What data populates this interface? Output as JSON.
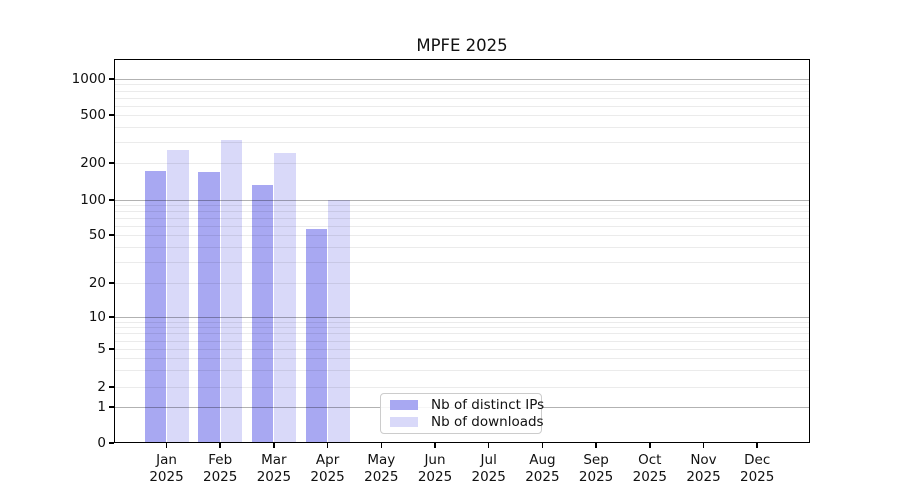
{
  "chart_data": {
    "type": "bar",
    "title": "MPFE 2025",
    "categories": [
      "Jan 2025",
      "Feb 2025",
      "Mar 2025",
      "Apr 2025",
      "May 2025",
      "Jun 2025",
      "Jul 2025",
      "Aug 2025",
      "Sep 2025",
      "Oct 2025",
      "Nov 2025",
      "Dec 2025"
    ],
    "x_tick_months": [
      "Jan",
      "Feb",
      "Mar",
      "Apr",
      "May",
      "Jun",
      "Jul",
      "Aug",
      "Sep",
      "Oct",
      "Nov",
      "Dec"
    ],
    "x_tick_year": "2025",
    "series": [
      {
        "name": "Nb of distinct IPs",
        "color": "#a8a8f2",
        "values": [
          172,
          170,
          132,
          56,
          null,
          null,
          null,
          null,
          null,
          null,
          null,
          null
        ]
      },
      {
        "name": "Nb of downloads",
        "color": "#d9d9f9",
        "values": [
          256,
          308,
          240,
          100,
          null,
          null,
          null,
          null,
          null,
          null,
          null,
          null
        ]
      }
    ],
    "yaxis": {
      "scale": "symlog",
      "tick_values": [
        0,
        1,
        2,
        5,
        10,
        20,
        50,
        100,
        200,
        500,
        1000
      ],
      "tick_labels": [
        "0",
        "1",
        "2",
        "5",
        "10",
        "20",
        "50",
        "100",
        "200",
        "500",
        "1000"
      ]
    },
    "grid": {
      "orientation": "horizontal",
      "major_values": [
        1,
        10,
        100,
        1000
      ],
      "minor_values": [
        2,
        3,
        4,
        5,
        6,
        7,
        8,
        9,
        20,
        30,
        40,
        50,
        60,
        70,
        80,
        90,
        200,
        300,
        400,
        500,
        600,
        700,
        800,
        900
      ]
    },
    "legend": {
      "position": "lower-center",
      "entries": [
        "Nb of distinct IPs",
        "Nb of downloads"
      ]
    },
    "colors": {
      "distinct_ips": "#a8a8f2",
      "downloads": "#d9d9f9",
      "grid_major": "#b3b3b3",
      "grid_minor": "#ededed",
      "spine": "#000000",
      "background": "#ffffff"
    }
  }
}
